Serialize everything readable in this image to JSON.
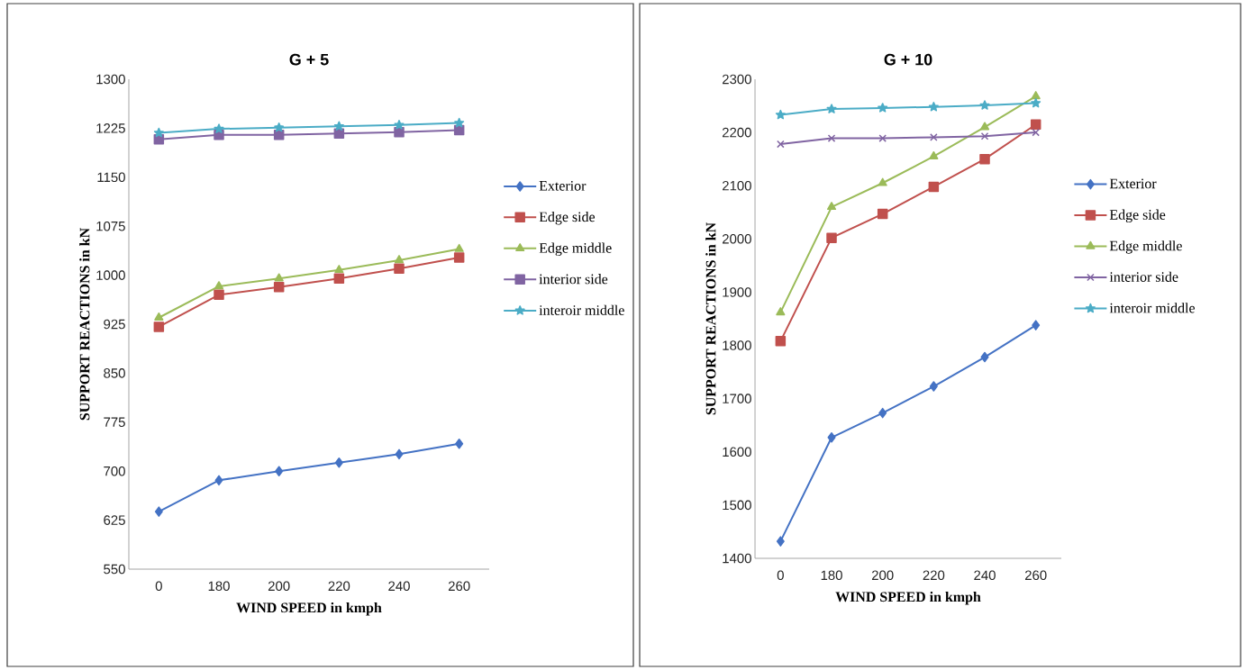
{
  "chart_data": [
    {
      "type": "line",
      "title": "G + 5",
      "xlabel": "WIND SPEED in kmph",
      "ylabel": "SUPPORT  REACTIONS in kN",
      "categories": [
        "0",
        "180",
        "200",
        "220",
        "240",
        "260"
      ],
      "ylim": [
        550,
        1300
      ],
      "yticks": [
        550,
        625,
        700,
        775,
        850,
        925,
        1000,
        1075,
        1150,
        1225,
        1300
      ],
      "legend": "right",
      "line_style": "solid",
      "series": [
        {
          "name": "Exterior",
          "color": "#4472c4",
          "marker": "diamond",
          "values": [
            638,
            686,
            700,
            713,
            726,
            742
          ]
        },
        {
          "name": "Edge side",
          "color": "#c0504d",
          "marker": "square",
          "values": [
            921,
            970,
            982,
            995,
            1010,
            1027
          ]
        },
        {
          "name": "Edge middle",
          "color": "#9bbb59",
          "marker": "triangle",
          "values": [
            935,
            983,
            995,
            1008,
            1023,
            1040
          ]
        },
        {
          "name": "interior side",
          "color": "#8064a2",
          "marker": "square",
          "values": [
            1208,
            1215,
            1215,
            1217,
            1219,
            1222
          ]
        },
        {
          "name": "interoir middle",
          "color": "#4bacc6",
          "marker": "star",
          "values": [
            1218,
            1224,
            1226,
            1228,
            1230,
            1233
          ]
        }
      ]
    },
    {
      "type": "line",
      "title": "G + 10",
      "xlabel": "WIND SPEED in kmph",
      "ylabel": "SUPPORT  REACTIONS in kN",
      "categories": [
        "0",
        "180",
        "200",
        "220",
        "240",
        "260"
      ],
      "ylim": [
        1400,
        2300
      ],
      "yticks": [
        1400,
        1500,
        1600,
        1700,
        1800,
        1900,
        2000,
        2100,
        2200,
        2300
      ],
      "legend": "right",
      "line_style": "solid",
      "series": [
        {
          "name": "Exterior",
          "color": "#4472c4",
          "marker": "diamond",
          "values": [
            1432,
            1627,
            1673,
            1723,
            1778,
            1838
          ]
        },
        {
          "name": "Edge side",
          "color": "#c0504d",
          "marker": "square",
          "values": [
            1808,
            2002,
            2047,
            2098,
            2150,
            2215
          ]
        },
        {
          "name": "Edge middle",
          "color": "#9bbb59",
          "marker": "triangle",
          "values": [
            1862,
            2060,
            2105,
            2155,
            2210,
            2268
          ]
        },
        {
          "name": "interior side",
          "color": "#8064a2",
          "marker": "cross",
          "values": [
            2178,
            2189,
            2189,
            2191,
            2193,
            2200
          ]
        },
        {
          "name": "interoir middle",
          "color": "#4bacc6",
          "marker": "star",
          "values": [
            2233,
            2244,
            2246,
            2248,
            2251,
            2255
          ]
        }
      ]
    }
  ]
}
